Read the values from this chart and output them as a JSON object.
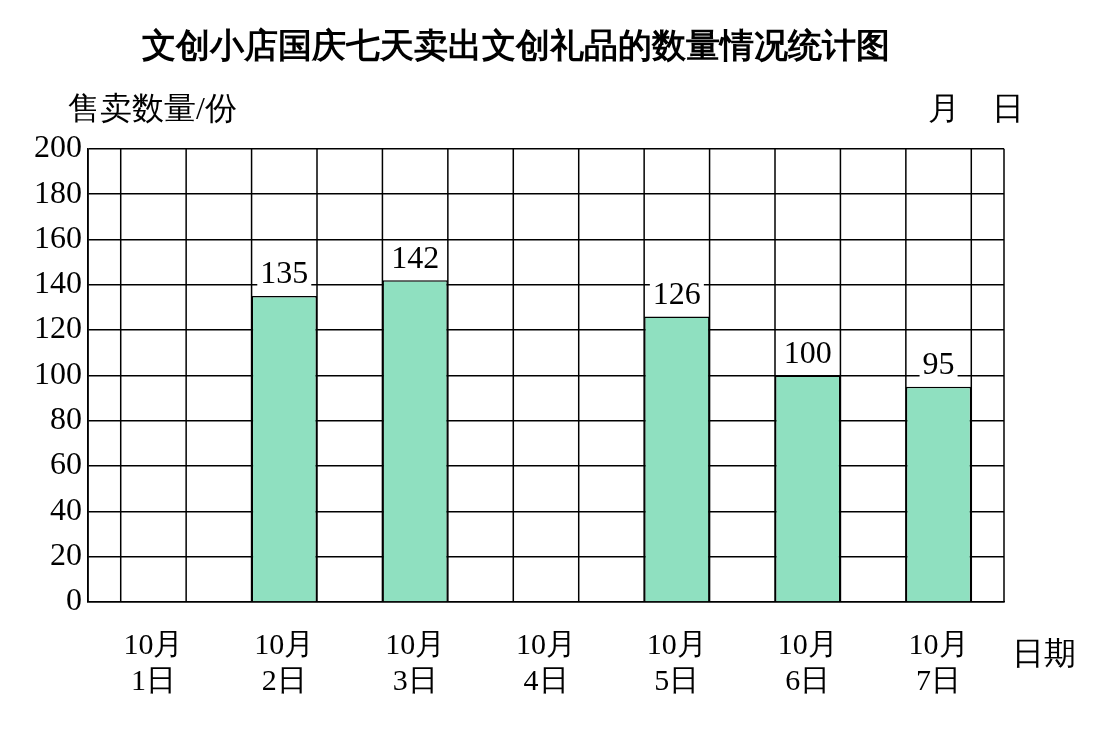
{
  "chart_data": {
    "type": "bar",
    "title": "文创小店国庆七天卖出文创礼品的数量情况统计图",
    "ylabel": "售卖数量/份",
    "xlabel": "日期",
    "annotations": [
      "月　日"
    ],
    "categories": [
      "10月\n1日",
      "10月\n2日",
      "10月\n3日",
      "10月\n4日",
      "10月\n5日",
      "10月\n6日",
      "10月\n7日"
    ],
    "values": [
      null,
      135,
      142,
      null,
      126,
      100,
      95
    ],
    "color": "#8fe0c0",
    "ylim": [
      0,
      200
    ],
    "yticks": [
      0,
      20,
      40,
      60,
      80,
      100,
      120,
      140,
      160,
      180,
      200
    ],
    "grid": true,
    "data_labels": true,
    "legend": false
  }
}
